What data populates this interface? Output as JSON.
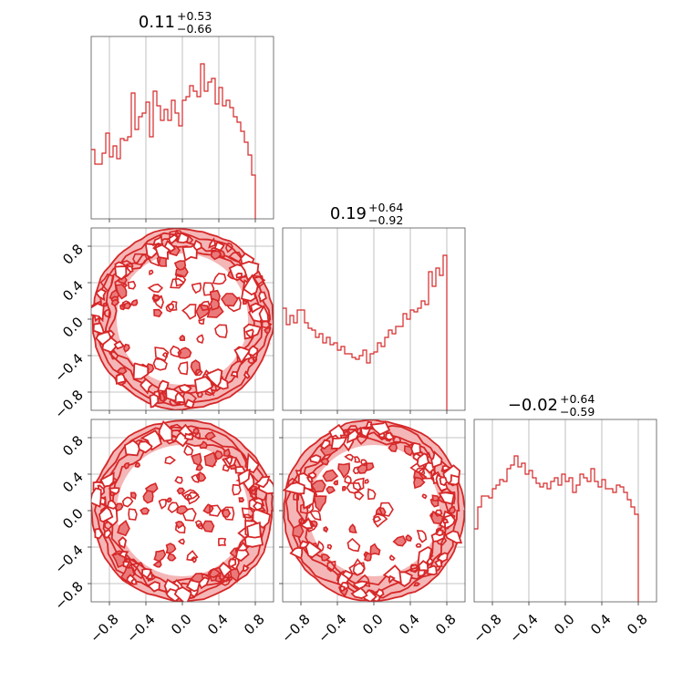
{
  "figure": {
    "type": "corner-plot",
    "color": "#d62728",
    "fill_light": "#f4b6b6",
    "fill_mid": "#ea7a7a",
    "grid": true
  },
  "chart_data": [
    {
      "type": "histogram",
      "parameter_index": 0,
      "title": {
        "median": "0.11",
        "plus": "+0.53",
        "minus": "−0.66"
      },
      "xlim": [
        -1,
        1
      ],
      "bin_edges_from": -1.0,
      "bin_width": 0.04,
      "values": [
        0.38,
        0.3,
        0.3,
        0.36,
        0.47,
        0.34,
        0.4,
        0.33,
        0.44,
        0.43,
        0.45,
        0.69,
        0.49,
        0.56,
        0.58,
        0.64,
        0.45,
        0.7,
        0.62,
        0.54,
        0.6,
        0.54,
        0.65,
        0.58,
        0.51,
        0.65,
        0.67,
        0.73,
        0.7,
        0.67,
        0.85,
        0.7,
        0.75,
        0.77,
        0.63,
        0.72,
        0.62,
        0.65,
        0.61,
        0.56,
        0.53,
        0.48,
        0.42,
        0.35,
        0.24
      ],
      "xticks": [
        "−0.8",
        "−0.4",
        "0.0",
        "0.4",
        "0.8"
      ],
      "ylim": [
        0,
        1
      ]
    },
    {
      "type": "histogram",
      "parameter_index": 1,
      "title": {
        "median": "0.19",
        "plus": "+0.64",
        "minus": "−0.92"
      },
      "xlim": [
        -1,
        1
      ],
      "bin_edges_from": -1.0,
      "bin_width": 0.04,
      "values": [
        0.56,
        0.47,
        0.52,
        0.48,
        0.55,
        0.55,
        0.48,
        0.45,
        0.44,
        0.4,
        0.42,
        0.37,
        0.4,
        0.36,
        0.37,
        0.33,
        0.35,
        0.31,
        0.31,
        0.29,
        0.28,
        0.3,
        0.33,
        0.26,
        0.31,
        0.32,
        0.37,
        0.35,
        0.4,
        0.44,
        0.42,
        0.46,
        0.46,
        0.53,
        0.5,
        0.55,
        0.54,
        0.56,
        0.6,
        0.58,
        0.76,
        0.68,
        0.78,
        0.74,
        0.85
      ],
      "xticks": [
        "−0.8",
        "−0.4",
        "0.0",
        "0.4",
        "0.8"
      ],
      "ylim": [
        0,
        1
      ]
    },
    {
      "type": "histogram",
      "parameter_index": 2,
      "title": {
        "median": "−0.02",
        "plus": "+0.64",
        "minus": "−0.59"
      },
      "xlim": [
        -1,
        1
      ],
      "bin_edges_from": -1.0,
      "bin_width": 0.04,
      "values": [
        0.4,
        0.52,
        0.58,
        0.58,
        0.57,
        0.62,
        0.64,
        0.67,
        0.66,
        0.73,
        0.75,
        0.8,
        0.74,
        0.76,
        0.7,
        0.72,
        0.68,
        0.65,
        0.63,
        0.65,
        0.62,
        0.66,
        0.68,
        0.64,
        0.7,
        0.66,
        0.68,
        0.6,
        0.64,
        0.7,
        0.68,
        0.66,
        0.73,
        0.66,
        0.63,
        0.67,
        0.62,
        0.62,
        0.6,
        0.64,
        0.63,
        0.6,
        0.56,
        0.52,
        0.48
      ],
      "xticks": [
        "−0.8",
        "−0.4",
        "0.0",
        "0.4",
        "0.8"
      ],
      "ylim": [
        0,
        1
      ]
    },
    {
      "type": "contour",
      "pair": [
        0,
        1
      ],
      "xlim": [
        -1,
        1
      ],
      "ylim": [
        -1,
        1
      ],
      "support": "unit-disk",
      "yticks": [
        "0.8",
        "0.4",
        "0.0",
        "−0.4",
        "−0.8"
      ]
    },
    {
      "type": "contour",
      "pair": [
        0,
        2
      ],
      "xlim": [
        -1,
        1
      ],
      "ylim": [
        -1,
        1
      ],
      "support": "unit-disk",
      "yticks": [
        "0.8",
        "0.4",
        "0.0",
        "−0.4",
        "−0.8"
      ],
      "xticks": [
        "−0.8",
        "−0.4",
        "0.0",
        "0.4",
        "0.8"
      ]
    },
    {
      "type": "contour",
      "pair": [
        1,
        2
      ],
      "xlim": [
        -1,
        1
      ],
      "ylim": [
        -1,
        1
      ],
      "support": "unit-disk",
      "xticks": [
        "−0.8",
        "−0.4",
        "0.0",
        "0.4",
        "0.8"
      ]
    }
  ]
}
